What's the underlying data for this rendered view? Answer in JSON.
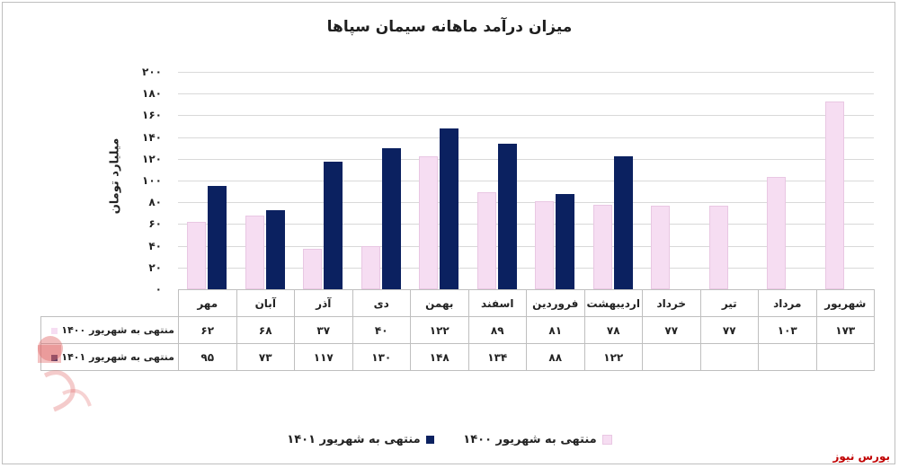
{
  "chart_data": {
    "type": "bar",
    "title": "میزان درآمد ماهانه سیمان سپاها",
    "ylabel": "میلیارد تومان",
    "ylim": [
      0,
      200
    ],
    "yticks": [
      "۰",
      "۲۰",
      "۴۰",
      "۶۰",
      "۸۰",
      "۱۰۰",
      "۱۲۰",
      "۱۴۰",
      "۱۶۰",
      "۱۸۰",
      "۲۰۰"
    ],
    "categories": [
      "مهر",
      "آبان",
      "آذر",
      "دی",
      "بهمن",
      "اسفند",
      "فروردین",
      "اردیبهشت",
      "خرداد",
      "تیر",
      "مرداد",
      "شهریور"
    ],
    "series": [
      {
        "name": "منتهی به شهریور ۱۴۰۰",
        "color": "#f6ddf2",
        "values": [
          62,
          68,
          37,
          40,
          122,
          89,
          81,
          78,
          77,
          77,
          103,
          173
        ],
        "labels": [
          "۶۲",
          "۶۸",
          "۳۷",
          "۴۰",
          "۱۲۲",
          "۸۹",
          "۸۱",
          "۷۸",
          "۷۷",
          "۷۷",
          "۱۰۳",
          "۱۷۳"
        ]
      },
      {
        "name": "منتهی به شهریور ۱۴۰۱",
        "color": "#0b2160",
        "values": [
          95,
          73,
          117,
          130,
          148,
          134,
          88,
          122,
          null,
          null,
          null,
          null
        ],
        "labels": [
          "۹۵",
          "۷۳",
          "۱۱۷",
          "۱۳۰",
          "۱۴۸",
          "۱۳۴",
          "۸۸",
          "۱۲۲",
          "",
          "",
          "",
          ""
        ]
      }
    ],
    "legend": "bottom",
    "grid": true,
    "data_table": true
  },
  "brand": "بورس نیوز"
}
